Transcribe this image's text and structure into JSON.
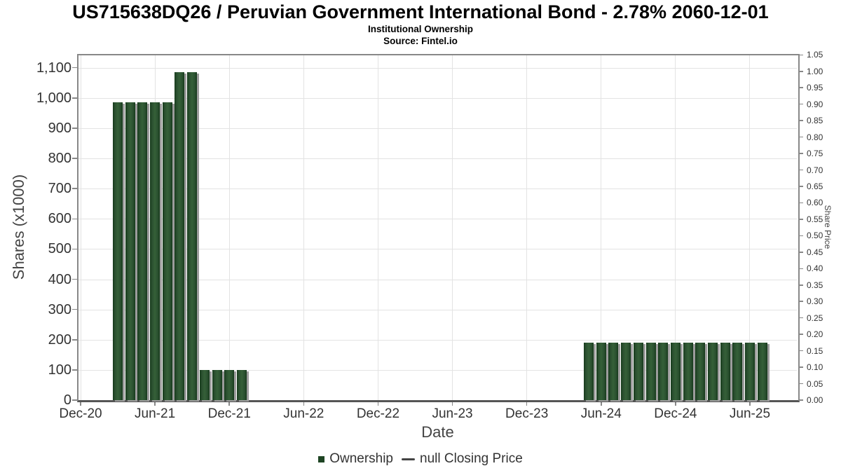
{
  "header": {
    "title": "US715638DQ26 / Peruvian Government International Bond - 2.78% 2060-12-01",
    "subtitle": "Institutional Ownership",
    "source": "Source: Fintel.io"
  },
  "chart_data": {
    "type": "bar",
    "title": "US715638DQ26 / Peruvian Government International Bond - 2.78% 2060-12-01",
    "subtitle": "Institutional Ownership",
    "source": "Source: Fintel.io",
    "x_axis": {
      "label": "Date",
      "ticks": [
        {
          "date": "2020-12",
          "label": "Dec-20"
        },
        {
          "date": "2021-06",
          "label": "Jun-21"
        },
        {
          "date": "2021-12",
          "label": "Dec-21"
        },
        {
          "date": "2022-06",
          "label": "Jun-22"
        },
        {
          "date": "2022-12",
          "label": "Dec-22"
        },
        {
          "date": "2023-06",
          "label": "Jun-23"
        },
        {
          "date": "2023-12",
          "label": "Dec-23"
        },
        {
          "date": "2024-06",
          "label": "Jun-24"
        },
        {
          "date": "2024-12",
          "label": "Dec-24"
        },
        {
          "date": "2025-06",
          "label": "Jun-25"
        }
      ]
    },
    "y_left": {
      "label": "Shares (x1000)",
      "min": 0,
      "max": 1100,
      "step": 100,
      "plot_top_value": 1140
    },
    "y_right": {
      "label": "Share Price",
      "min": 0,
      "max": 1.05,
      "step": 0.05
    },
    "grid": true,
    "legend_position": "bottom",
    "series": [
      {
        "name": "Ownership",
        "type": "bar",
        "color": "#1e4423",
        "points": [
          {
            "date": "2021-03",
            "label": "Mar-21",
            "value": 985
          },
          {
            "date": "2021-04",
            "label": "Apr-21",
            "value": 985
          },
          {
            "date": "2021-05",
            "label": "May-21",
            "value": 985
          },
          {
            "date": "2021-06",
            "label": "Jun-21",
            "value": 985
          },
          {
            "date": "2021-07",
            "label": "Jul-21",
            "value": 985
          },
          {
            "date": "2021-08",
            "label": "Aug-21",
            "value": 1085
          },
          {
            "date": "2021-09",
            "label": "Sep-21",
            "value": 1085
          },
          {
            "date": "2021-10",
            "label": "Oct-21",
            "value": 100
          },
          {
            "date": "2021-11",
            "label": "Nov-21",
            "value": 100
          },
          {
            "date": "2021-12",
            "label": "Dec-21",
            "value": 100
          },
          {
            "date": "2022-01",
            "label": "Jan-22",
            "value": 100
          },
          {
            "date": "2024-05",
            "label": "May-24",
            "value": 190
          },
          {
            "date": "2024-06",
            "label": "Jun-24",
            "value": 190
          },
          {
            "date": "2024-07",
            "label": "Jul-24",
            "value": 190
          },
          {
            "date": "2024-08",
            "label": "Aug-24",
            "value": 190
          },
          {
            "date": "2024-09",
            "label": "Sep-24",
            "value": 190
          },
          {
            "date": "2024-10",
            "label": "Oct-24",
            "value": 190
          },
          {
            "date": "2024-11",
            "label": "Nov-24",
            "value": 190
          },
          {
            "date": "2024-12",
            "label": "Dec-24",
            "value": 190
          },
          {
            "date": "2025-01",
            "label": "Jan-25",
            "value": 190
          },
          {
            "date": "2025-02",
            "label": "Feb-25",
            "value": 190
          },
          {
            "date": "2025-03",
            "label": "Mar-25",
            "value": 190
          },
          {
            "date": "2025-04",
            "label": "Apr-25",
            "value": 190
          },
          {
            "date": "2025-05",
            "label": "May-25",
            "value": 190
          },
          {
            "date": "2025-06",
            "label": "Jun-25",
            "value": 190
          },
          {
            "date": "2025-07",
            "label": "Jul-25",
            "value": 190
          }
        ]
      },
      {
        "name": "null Closing Price",
        "type": "line",
        "color": "#444444",
        "points": []
      }
    ]
  },
  "legend": {
    "items": [
      {
        "label": "Ownership",
        "marker": "square",
        "color": "#1e4423"
      },
      {
        "label": "null Closing Price",
        "marker": "line",
        "color": "#444444"
      }
    ]
  }
}
